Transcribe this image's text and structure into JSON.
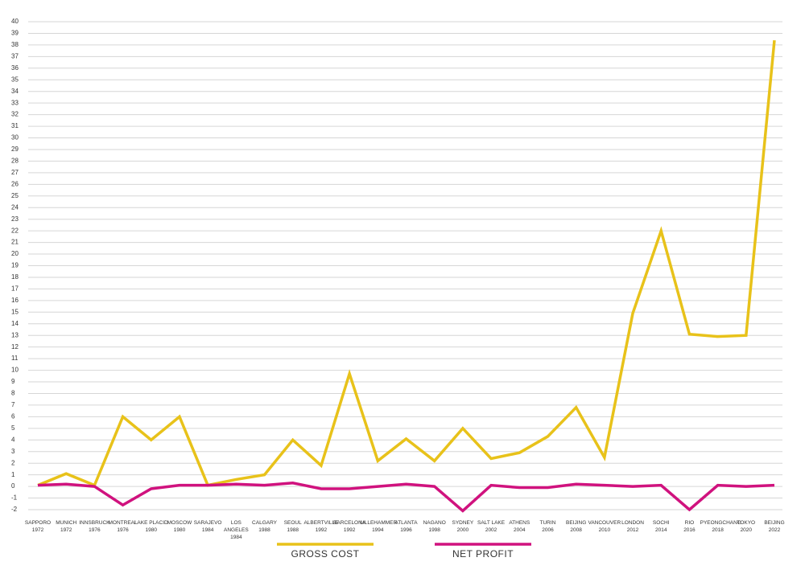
{
  "chart_data": {
    "type": "line",
    "categories": [
      "SAPPORO\n1972",
      "MUNICH\n1972",
      "INNSBRUCK\n1976",
      "MONTREAL\n1976",
      "LAKE PLACID\n1980",
      "MOSCOW\n1980",
      "SARAJEVO\n1984",
      "LOS ANGELES\n1984",
      "CALGARY\n1988",
      "SEOUL\n1988",
      "ALBERTVILLE\n1992",
      "BARCELONA\n1992",
      "LILLEHAMMER\n1994",
      "ATLANTA\n1996",
      "NAGANO\n1998",
      "SYDNEY\n2000",
      "SALT LAKE\n2002",
      "ATHENS\n2004",
      "TURIN\n2006",
      "BEIJING\n2008",
      "VANCOUVER\n2010",
      "LONDON\n2012",
      "SOCHI\n2014",
      "RIO\n2016",
      "PYEONGCHANG\n2018",
      "TOKYO\n2020",
      "BEIJING\n2022"
    ],
    "series": [
      {
        "name": "GROSS COST",
        "color": "#e8c21a",
        "values": [
          0.1,
          1.1,
          0.1,
          6,
          4,
          6,
          0.1,
          0.6,
          1.0,
          4,
          1.8,
          9.7,
          2.2,
          4.1,
          2.2,
          5,
          2.4,
          2.9,
          4.3,
          6.8,
          2.5,
          14.9,
          22,
          13.1,
          12.9,
          13,
          38.4
        ]
      },
      {
        "name": "NET PROFIT",
        "color": "#d0127e",
        "values": [
          0.1,
          0.2,
          0,
          -1.6,
          -0.2,
          0.1,
          0.1,
          0.2,
          0.1,
          0.3,
          -0.2,
          -0.2,
          0,
          0.2,
          0,
          -2.1,
          0.1,
          -0.1,
          -0.1,
          0.2,
          0.1,
          0,
          0.1,
          -2,
          0.1,
          0,
          0.1
        ]
      }
    ],
    "ylim": [
      -2,
      40
    ],
    "yticks": [
      -2,
      -1,
      0,
      1,
      2,
      3,
      4,
      5,
      6,
      7,
      8,
      9,
      10,
      11,
      12,
      13,
      14,
      15,
      16,
      17,
      18,
      19,
      20,
      21,
      22,
      23,
      24,
      25,
      26,
      27,
      28,
      29,
      30,
      31,
      32,
      33,
      34,
      35,
      36,
      37,
      38,
      39,
      40
    ],
    "grid": true
  }
}
